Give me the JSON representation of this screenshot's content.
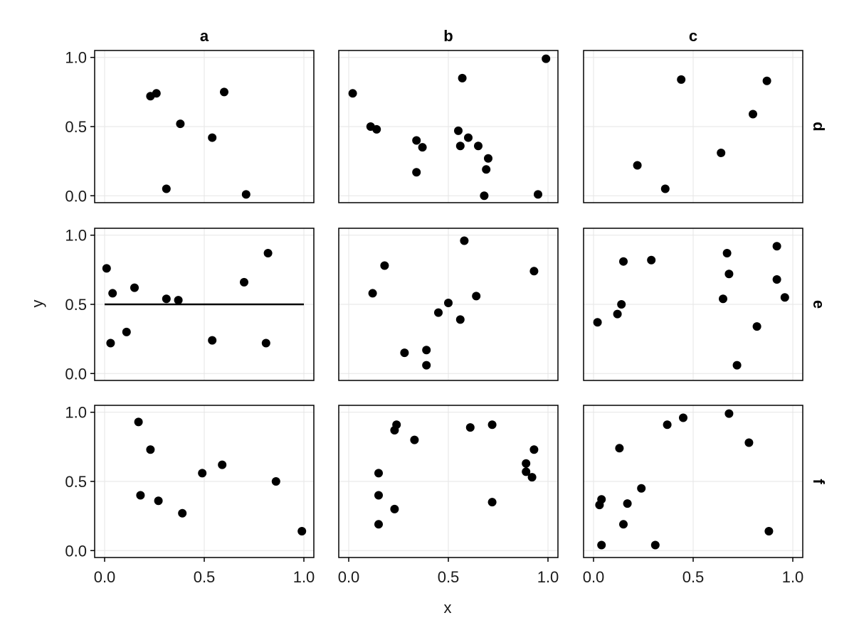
{
  "chart_data": {
    "type": "scatter",
    "layout": "faceted-grid",
    "xlabel": "x",
    "ylabel": "y",
    "xlim": [
      -0.05,
      1.05
    ],
    "ylim": [
      -0.05,
      1.05
    ],
    "xticks": [
      0.0,
      0.5,
      1.0
    ],
    "yticks": [
      0.0,
      0.5,
      1.0
    ],
    "xtick_labels": [
      "0.0",
      "0.5",
      "1.0"
    ],
    "ytick_labels": [
      "0.0",
      "0.5",
      "1.0"
    ],
    "grid": true,
    "columns": [
      "a",
      "b",
      "c"
    ],
    "rows": [
      "d",
      "e",
      "f"
    ],
    "marker_color": "#000000",
    "grid_color": "#e5e5e5",
    "panels": [
      {
        "col": "a",
        "row": "d",
        "points": [
          [
            0.23,
            0.72
          ],
          [
            0.26,
            0.74
          ],
          [
            0.38,
            0.52
          ],
          [
            0.6,
            0.75
          ],
          [
            0.54,
            0.42
          ],
          [
            0.31,
            0.05
          ],
          [
            0.71,
            0.01
          ]
        ]
      },
      {
        "col": "b",
        "row": "d",
        "points": [
          [
            0.02,
            0.74
          ],
          [
            0.11,
            0.5
          ],
          [
            0.14,
            0.48
          ],
          [
            0.34,
            0.4
          ],
          [
            0.37,
            0.35
          ],
          [
            0.34,
            0.17
          ],
          [
            0.57,
            0.85
          ],
          [
            0.55,
            0.47
          ],
          [
            0.6,
            0.42
          ],
          [
            0.56,
            0.36
          ],
          [
            0.65,
            0.36
          ],
          [
            0.7,
            0.27
          ],
          [
            0.69,
            0.19
          ],
          [
            0.68,
            0.0
          ],
          [
            0.95,
            0.01
          ],
          [
            0.99,
            0.99
          ]
        ]
      },
      {
        "col": "c",
        "row": "d",
        "points": [
          [
            0.44,
            0.84
          ],
          [
            0.87,
            0.83
          ],
          [
            0.8,
            0.59
          ],
          [
            0.64,
            0.31
          ],
          [
            0.22,
            0.22
          ],
          [
            0.36,
            0.05
          ]
        ]
      },
      {
        "col": "a",
        "row": "e",
        "points": [
          [
            0.01,
            0.76
          ],
          [
            0.04,
            0.58
          ],
          [
            0.15,
            0.62
          ],
          [
            0.31,
            0.54
          ],
          [
            0.37,
            0.53
          ],
          [
            0.7,
            0.66
          ],
          [
            0.82,
            0.87
          ],
          [
            0.11,
            0.3
          ],
          [
            0.03,
            0.22
          ],
          [
            0.54,
            0.24
          ],
          [
            0.81,
            0.22
          ]
        ],
        "hline": 0.5
      },
      {
        "col": "b",
        "row": "e",
        "points": [
          [
            0.12,
            0.58
          ],
          [
            0.18,
            0.78
          ],
          [
            0.58,
            0.96
          ],
          [
            0.93,
            0.74
          ],
          [
            0.64,
            0.56
          ],
          [
            0.5,
            0.51
          ],
          [
            0.45,
            0.44
          ],
          [
            0.56,
            0.39
          ],
          [
            0.28,
            0.15
          ],
          [
            0.39,
            0.17
          ],
          [
            0.39,
            0.06
          ]
        ]
      },
      {
        "col": "c",
        "row": "e",
        "points": [
          [
            0.15,
            0.81
          ],
          [
            0.29,
            0.82
          ],
          [
            0.67,
            0.87
          ],
          [
            0.92,
            0.92
          ],
          [
            0.68,
            0.72
          ],
          [
            0.92,
            0.68
          ],
          [
            0.96,
            0.55
          ],
          [
            0.65,
            0.54
          ],
          [
            0.14,
            0.5
          ],
          [
            0.12,
            0.43
          ],
          [
            0.02,
            0.37
          ],
          [
            0.82,
            0.34
          ],
          [
            0.72,
            0.06
          ]
        ]
      },
      {
        "col": "a",
        "row": "f",
        "points": [
          [
            0.17,
            0.93
          ],
          [
            0.23,
            0.73
          ],
          [
            0.49,
            0.56
          ],
          [
            0.59,
            0.62
          ],
          [
            0.86,
            0.5
          ],
          [
            0.18,
            0.4
          ],
          [
            0.27,
            0.36
          ],
          [
            0.39,
            0.27
          ],
          [
            0.99,
            0.14
          ]
        ]
      },
      {
        "col": "b",
        "row": "f",
        "points": [
          [
            0.24,
            0.91
          ],
          [
            0.23,
            0.87
          ],
          [
            0.33,
            0.8
          ],
          [
            0.61,
            0.89
          ],
          [
            0.72,
            0.91
          ],
          [
            0.93,
            0.73
          ],
          [
            0.89,
            0.63
          ],
          [
            0.89,
            0.57
          ],
          [
            0.92,
            0.53
          ],
          [
            0.15,
            0.56
          ],
          [
            0.15,
            0.4
          ],
          [
            0.23,
            0.3
          ],
          [
            0.72,
            0.35
          ],
          [
            0.15,
            0.19
          ]
        ]
      },
      {
        "col": "c",
        "row": "f",
        "points": [
          [
            0.68,
            0.99
          ],
          [
            0.45,
            0.96
          ],
          [
            0.37,
            0.91
          ],
          [
            0.78,
            0.78
          ],
          [
            0.13,
            0.74
          ],
          [
            0.24,
            0.45
          ],
          [
            0.04,
            0.37
          ],
          [
            0.03,
            0.33
          ],
          [
            0.17,
            0.34
          ],
          [
            0.15,
            0.19
          ],
          [
            0.04,
            0.04
          ],
          [
            0.31,
            0.04
          ],
          [
            0.88,
            0.14
          ]
        ]
      }
    ]
  }
}
